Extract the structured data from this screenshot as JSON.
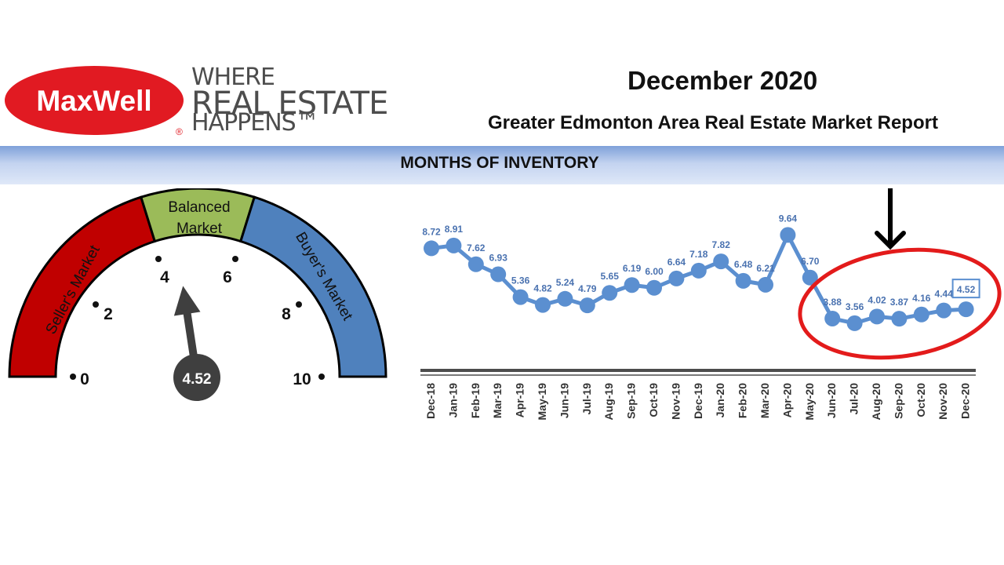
{
  "logo": {
    "brand": "MaxWell",
    "registered": "®",
    "tagline_1": "WHERE",
    "tagline_2": "REAL ESTATE",
    "tagline_3": "HAPPENS™"
  },
  "header": {
    "date": "December 2020",
    "subtitle": "Greater Edmonton Area Real Estate Market Report",
    "section_title": "MONTHS OF INVENTORY"
  },
  "gauge": {
    "value": 4.52,
    "value_label": "4.52",
    "min": 0,
    "max": 10,
    "ticks": [
      "0",
      "2",
      "4",
      "6",
      "8",
      "10"
    ],
    "zones": [
      {
        "name": "Seller's Market",
        "from": 0,
        "to": 4,
        "color": "#c00000"
      },
      {
        "name": "Balanced Market",
        "from": 4,
        "to": 6,
        "color": "#9bbb59"
      },
      {
        "name": "Buyer's Market",
        "from": 6,
        "to": 10,
        "color": "#4f81bd"
      }
    ],
    "balanced_line_1": "Balanced",
    "balanced_line_2": "Market"
  },
  "chart_data": {
    "type": "line",
    "categories": [
      "Dec-18",
      "Jan-19",
      "Feb-19",
      "Mar-19",
      "Apr-19",
      "May-19",
      "Jun-19",
      "Jul-19",
      "Aug-19",
      "Sep-19",
      "Oct-19",
      "Nov-19",
      "Dec-19",
      "Jan-20",
      "Feb-20",
      "Mar-20",
      "Apr-20",
      "May-20",
      "Jun-20",
      "Jul-20",
      "Aug-20",
      "Sep-20",
      "Oct-20",
      "Nov-20",
      "Dec-20"
    ],
    "values": [
      8.72,
      8.91,
      7.62,
      6.93,
      5.36,
      4.82,
      5.24,
      4.79,
      5.65,
      6.19,
      6.0,
      6.64,
      7.18,
      7.82,
      6.48,
      6.21,
      9.64,
      6.7,
      3.88,
      3.56,
      4.02,
      3.87,
      4.16,
      4.44,
      4.52
    ],
    "labels": [
      "8.72",
      "8.91",
      "7.62",
      "6.93",
      "5.36",
      "4.82",
      "5.24",
      "4.79",
      "5.65",
      "6.19",
      "6.00",
      "6.64",
      "7.18",
      "7.82",
      "6.48",
      "6.21",
      "9.64",
      "6.70",
      "3.88",
      "3.56",
      "4.02",
      "3.87",
      "4.16",
      "4.44",
      "4.52"
    ],
    "highlighted_last_label": "4.52",
    "line_color": "#5b8fd0",
    "label_color": "#4a72b0",
    "grid": false,
    "annotation": {
      "type": "highlight-ellipse",
      "color": "#e31b1b",
      "covers": [
        "Jun-20",
        "Dec-20"
      ]
    }
  }
}
